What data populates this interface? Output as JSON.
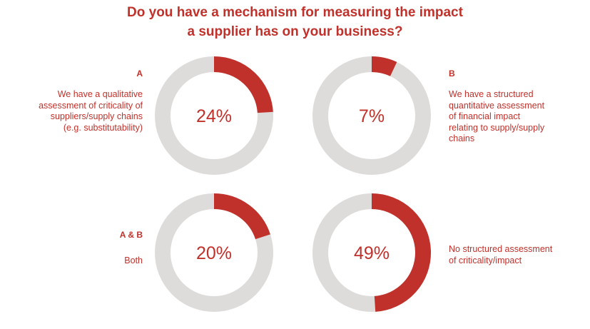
{
  "title": {
    "line1": "Do you have a mechanism for measuring the impact",
    "line2": "a supplier has on your business?"
  },
  "colors": {
    "accent": "#c0312b",
    "track": "#dedcdb",
    "text": "#c0312b"
  },
  "chart_data": {
    "type": "pie",
    "style": "donut-small-multiples",
    "charts": [
      {
        "code": "A",
        "label_lines": [
          "We have a qualitative",
          "assessment of criticality of",
          "suppliers/supply chains",
          "(e.g. substitutability)"
        ],
        "value": 24,
        "display": "24%"
      },
      {
        "code": "B",
        "label_lines": [
          "We have a structured",
          "quantitative assessment",
          "of financial impact",
          "relating to supply/supply",
          "chains"
        ],
        "value": 7,
        "display": "7%"
      },
      {
        "code": "A & B",
        "label_lines": [
          "Both"
        ],
        "value": 20,
        "display": "20%"
      },
      {
        "code": "",
        "label_lines": [
          "No structured assessment",
          "of criticality/impact"
        ],
        "value": 49,
        "display": "49%"
      }
    ]
  }
}
